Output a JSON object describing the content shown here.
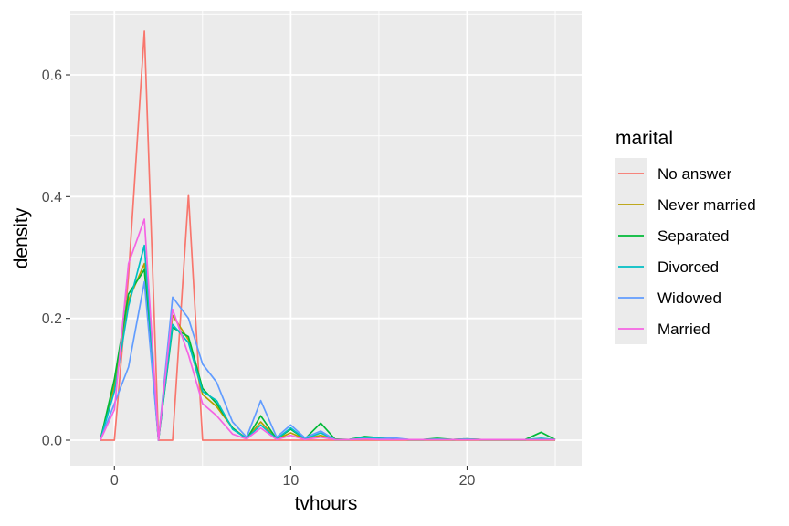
{
  "chart_data": {
    "type": "line",
    "title": "",
    "xlabel": "tvhours",
    "ylabel": "density",
    "xlim": [
      -2.5,
      26.5
    ],
    "ylim": [
      -0.042,
      0.705
    ],
    "x_ticks": [
      0,
      10,
      20
    ],
    "y_ticks": [
      0.0,
      0.2,
      0.4,
      0.6
    ],
    "x_tick_labels": [
      "0",
      "10",
      "20"
    ],
    "y_tick_labels": [
      "0.0",
      "0.2",
      "0.4",
      "0.6"
    ],
    "grid": true,
    "legend": {
      "title": "marital",
      "position": "right"
    },
    "x": [
      -0.8,
      0.0,
      0.8,
      1.7,
      2.5,
      3.3,
      4.2,
      5.0,
      5.8,
      6.7,
      7.5,
      8.3,
      9.2,
      10.0,
      10.8,
      11.7,
      12.5,
      13.3,
      14.2,
      15.0,
      15.8,
      16.7,
      17.5,
      18.3,
      19.2,
      20.0,
      20.8,
      21.7,
      22.5,
      23.3,
      24.2,
      25.0
    ],
    "series": [
      {
        "name": "No answer",
        "color": "#F8766D",
        "values": [
          0,
          0,
          0.27,
          0.672,
          0,
          0,
          0.403,
          0,
          0,
          0,
          0,
          0,
          0,
          0,
          0,
          0,
          0,
          0,
          0,
          0,
          0,
          0,
          0,
          0,
          0,
          0,
          0,
          0,
          0,
          0,
          0,
          0
        ]
      },
      {
        "name": "Never married",
        "color": "#B79F00",
        "values": [
          0,
          0.09,
          0.23,
          0.29,
          0,
          0.205,
          0.165,
          0.075,
          0.055,
          0.02,
          0.003,
          0.03,
          0.002,
          0.012,
          0.002,
          0.008,
          0.001,
          0.001,
          0.003,
          0.002,
          0.002,
          0.001,
          0.001,
          0.001,
          0.001,
          0.002,
          0.001,
          0.001,
          0.001,
          0.001,
          0.002,
          0.001
        ]
      },
      {
        "name": "Separated",
        "color": "#00BA38",
        "values": [
          0,
          0.1,
          0.24,
          0.28,
          0,
          0.185,
          0.17,
          0.085,
          0.06,
          0.02,
          0.002,
          0.04,
          0.002,
          0.018,
          0.002,
          0.028,
          0.002,
          0.001,
          0.006,
          0.004,
          0.002,
          0.001,
          0.001,
          0.003,
          0.001,
          0.002,
          0.001,
          0.001,
          0.001,
          0.001,
          0.013,
          0.001
        ]
      },
      {
        "name": "Divorced",
        "color": "#00BFC4",
        "values": [
          0,
          0.08,
          0.22,
          0.32,
          0,
          0.19,
          0.16,
          0.08,
          0.065,
          0.018,
          0.003,
          0.025,
          0.002,
          0.02,
          0.002,
          0.012,
          0.001,
          0.001,
          0.004,
          0.003,
          0.003,
          0.001,
          0.001,
          0.002,
          0.001,
          0.002,
          0.001,
          0.001,
          0.001,
          0.001,
          0.003,
          0.001
        ]
      },
      {
        "name": "Widowed",
        "color": "#619CFF",
        "values": [
          0,
          0.06,
          0.12,
          0.26,
          0,
          0.235,
          0.2,
          0.125,
          0.095,
          0.03,
          0.005,
          0.065,
          0.005,
          0.025,
          0.004,
          0.015,
          0.001,
          0.001,
          0.002,
          0.002,
          0.004,
          0.001,
          0.001,
          0.001,
          0.001,
          0.001,
          0.001,
          0.001,
          0.001,
          0.001,
          0.001,
          0.001
        ]
      },
      {
        "name": "Married",
        "color": "#F564E3",
        "values": [
          0,
          0.05,
          0.29,
          0.363,
          0,
          0.215,
          0.14,
          0.06,
          0.04,
          0.01,
          0.002,
          0.02,
          0.001,
          0.008,
          0.001,
          0.005,
          0.001,
          0.001,
          0.002,
          0.001,
          0.001,
          0.001,
          0.001,
          0.001,
          0.001,
          0.001,
          0.001,
          0.001,
          0.001,
          0.001,
          0.001,
          0.001
        ]
      }
    ]
  }
}
